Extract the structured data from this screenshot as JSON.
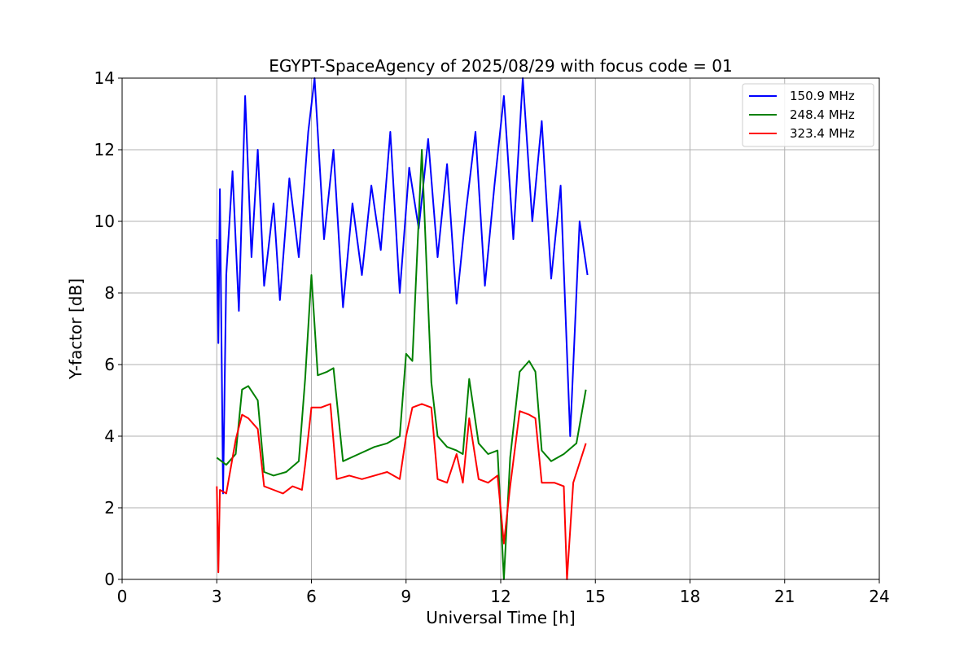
{
  "chart_data": {
    "type": "line",
    "title": "EGYPT-SpaceAgency of 2025/08/29 with focus code = 01",
    "xlabel": "Universal Time [h]",
    "ylabel": "Y-factor [dB]",
    "xlim": [
      0,
      24
    ],
    "ylim": [
      0,
      14
    ],
    "xticks": [
      0,
      3,
      6,
      9,
      12,
      15,
      18,
      21,
      24
    ],
    "yticks": [
      0,
      2,
      4,
      6,
      8,
      10,
      12,
      14
    ],
    "grid": true,
    "legend_position": "top-right",
    "series": [
      {
        "name": "150.9 MHz",
        "color": "#0000ff",
        "x": [
          3.0,
          3.05,
          3.1,
          3.2,
          3.3,
          3.5,
          3.7,
          3.9,
          4.1,
          4.3,
          4.5,
          4.8,
          5.0,
          5.3,
          5.6,
          5.9,
          6.1,
          6.4,
          6.7,
          7.0,
          7.3,
          7.6,
          7.9,
          8.2,
          8.5,
          8.8,
          9.1,
          9.4,
          9.7,
          10.0,
          10.3,
          10.6,
          10.9,
          11.2,
          11.5,
          11.8,
          12.1,
          12.4,
          12.7,
          13.0,
          13.3,
          13.6,
          13.9,
          14.2,
          14.5,
          14.75
        ],
        "y": [
          9.5,
          6.6,
          10.9,
          2.4,
          8.5,
          11.4,
          7.5,
          13.5,
          9.0,
          12.0,
          8.2,
          10.5,
          7.8,
          11.2,
          9.0,
          12.5,
          14.0,
          9.5,
          12.0,
          7.6,
          10.5,
          8.5,
          11.0,
          9.2,
          12.5,
          8.0,
          11.5,
          9.8,
          12.3,
          9.0,
          11.6,
          7.7,
          10.3,
          12.5,
          8.2,
          11.0,
          13.5,
          9.5,
          14.0,
          10.0,
          12.8,
          8.4,
          11.0,
          4.0,
          10.0,
          8.5
        ]
      },
      {
        "name": "248.4 MHz",
        "color": "#008000",
        "x": [
          3.0,
          3.3,
          3.6,
          3.8,
          4.0,
          4.3,
          4.5,
          4.8,
          5.2,
          5.6,
          5.8,
          6.0,
          6.2,
          6.5,
          6.7,
          7.0,
          7.5,
          8.0,
          8.4,
          8.8,
          9.0,
          9.2,
          9.5,
          9.8,
          10.0,
          10.3,
          10.6,
          10.8,
          11.0,
          11.3,
          11.6,
          11.9,
          12.1,
          12.3,
          12.6,
          12.9,
          13.1,
          13.3,
          13.6,
          14.0,
          14.4,
          14.7
        ],
        "y": [
          3.4,
          3.2,
          3.5,
          5.3,
          5.4,
          5.0,
          3.0,
          2.9,
          3.0,
          3.3,
          5.6,
          8.5,
          5.7,
          5.8,
          5.9,
          3.3,
          3.5,
          3.7,
          3.8,
          4.0,
          6.3,
          6.1,
          12.0,
          5.5,
          4.0,
          3.7,
          3.6,
          3.5,
          5.6,
          3.8,
          3.5,
          3.6,
          0.0,
          3.4,
          5.8,
          6.1,
          5.8,
          3.6,
          3.3,
          3.5,
          3.8,
          5.3
        ]
      },
      {
        "name": "323.4 MHz",
        "color": "#ff0000",
        "x": [
          3.0,
          3.05,
          3.1,
          3.3,
          3.6,
          3.8,
          4.0,
          4.3,
          4.5,
          4.8,
          5.1,
          5.4,
          5.7,
          5.8,
          6.0,
          6.3,
          6.6,
          6.8,
          7.2,
          7.6,
          8.0,
          8.4,
          8.8,
          9.0,
          9.2,
          9.5,
          9.8,
          10.0,
          10.3,
          10.6,
          10.8,
          11.0,
          11.3,
          11.6,
          11.9,
          12.1,
          12.3,
          12.6,
          12.9,
          13.1,
          13.3,
          13.7,
          14.0,
          14.1,
          14.3,
          14.7
        ],
        "y": [
          2.6,
          0.2,
          2.5,
          2.4,
          3.9,
          4.6,
          4.5,
          4.2,
          2.6,
          2.5,
          2.4,
          2.6,
          2.5,
          3.2,
          4.8,
          4.8,
          4.9,
          2.8,
          2.9,
          2.8,
          2.9,
          3.0,
          2.8,
          4.0,
          4.8,
          4.9,
          4.8,
          2.8,
          2.7,
          3.5,
          2.7,
          4.5,
          2.8,
          2.7,
          2.9,
          1.0,
          2.6,
          4.7,
          4.6,
          4.5,
          2.7,
          2.7,
          2.6,
          0.0,
          2.7,
          3.8
        ]
      }
    ]
  }
}
